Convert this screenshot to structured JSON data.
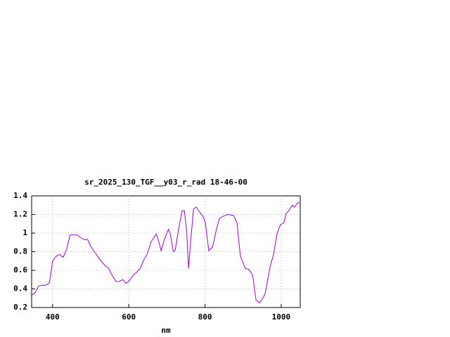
{
  "chart_data": {
    "type": "line",
    "title": "sr_2025_130_TGF__y03_r_rad 18-46-00",
    "x_label": "nm",
    "color": "#9400d3",
    "grid": true,
    "xlim": [
      345,
      1050
    ],
    "xticks": [
      400,
      600,
      800,
      1000
    ],
    "ylim": [
      0.2,
      1.4
    ],
    "yticks": [
      0.2,
      0.4,
      0.6,
      0.8,
      1,
      1.2,
      1.4
    ],
    "x": [
      345,
      354,
      363,
      372,
      382,
      391,
      394,
      400,
      409,
      418,
      428,
      437,
      446,
      455,
      464,
      474,
      483,
      492,
      501,
      510,
      520,
      529,
      538,
      547,
      556,
      566,
      575,
      584,
      593,
      602,
      612,
      621,
      630,
      639,
      648,
      658,
      667,
      672,
      678,
      685,
      694,
      704,
      709,
      717,
      722,
      731,
      740,
      746,
      752,
      757,
      763,
      770,
      777,
      787,
      796,
      801,
      810,
      820,
      829,
      838,
      847,
      860,
      875,
      884,
      893,
      906,
      915,
      925,
      934,
      943,
      952,
      958,
      971,
      980,
      989,
      998,
      1007,
      1013,
      1020,
      1029,
      1035,
      1042,
      1048
    ],
    "values": [
      0.33,
      0.36,
      0.43,
      0.44,
      0.44,
      0.46,
      0.52,
      0.7,
      0.75,
      0.77,
      0.74,
      0.83,
      0.98,
      0.98,
      0.98,
      0.95,
      0.93,
      0.93,
      0.85,
      0.8,
      0.74,
      0.69,
      0.65,
      0.62,
      0.55,
      0.48,
      0.48,
      0.5,
      0.46,
      0.49,
      0.55,
      0.58,
      0.62,
      0.71,
      0.77,
      0.9,
      0.96,
      0.99,
      0.92,
      0.81,
      0.94,
      1.04,
      0.99,
      0.8,
      0.82,
      1.05,
      1.24,
      1.24,
      1.02,
      0.62,
      0.94,
      1.26,
      1.28,
      1.22,
      1.17,
      1.11,
      0.81,
      0.85,
      1.02,
      1.16,
      1.18,
      1.2,
      1.19,
      1.11,
      0.75,
      0.62,
      0.61,
      0.55,
      0.28,
      0.25,
      0.3,
      0.35,
      0.64,
      0.77,
      0.99,
      1.09,
      1.11,
      1.21,
      1.24,
      1.3,
      1.28,
      1.32,
      1.33
    ]
  }
}
